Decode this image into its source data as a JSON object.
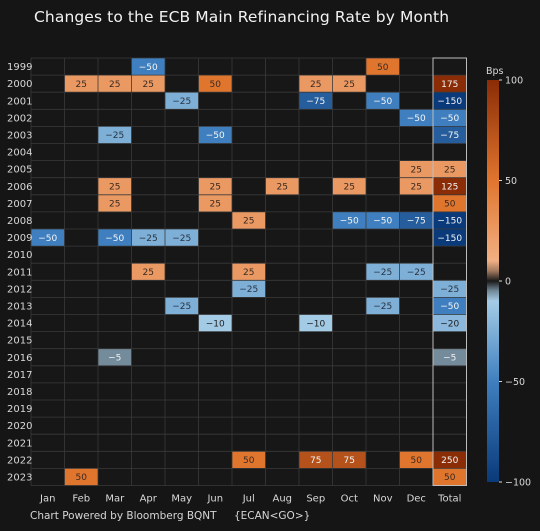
{
  "title": "Changes to the ECB Main Refinancing Rate by Month",
  "footer": {
    "credit": "Chart Powered by Bloomberg BQNT",
    "ticker": "{ECAN<GO>}"
  },
  "colors": {
    "background": "#151515",
    "grid": "#3a3a3a",
    "strong_negative": "#0a3a7a",
    "mid_negative": "#3f7fbf",
    "light_negative": "#a9cfe8",
    "zero": "#1a1a1a",
    "light_positive": "#f2b287",
    "mid_positive": "#e0752e",
    "strong_positive": "#8a2c06"
  },
  "chart_data": {
    "type": "heatmap",
    "title": "Changes to the ECB Main Refinancing Rate by Month",
    "columns": [
      "Jan",
      "Feb",
      "Mar",
      "Apr",
      "May",
      "Jun",
      "Jul",
      "Aug",
      "Sep",
      "Oct",
      "Nov",
      "Dec",
      "Total"
    ],
    "rows": [
      "1999",
      "2000",
      "2001",
      "2002",
      "2003",
      "2004",
      "2005",
      "2006",
      "2007",
      "2008",
      "2009",
      "2010",
      "2011",
      "2012",
      "2013",
      "2014",
      "2015",
      "2016",
      "2017",
      "2018",
      "2019",
      "2020",
      "2021",
      "2022",
      "2023"
    ],
    "values": [
      [
        null,
        null,
        null,
        -50,
        null,
        null,
        null,
        null,
        null,
        null,
        50,
        null,
        0
      ],
      [
        null,
        25,
        25,
        25,
        null,
        50,
        null,
        null,
        25,
        25,
        null,
        null,
        175
      ],
      [
        null,
        null,
        null,
        null,
        -25,
        null,
        null,
        null,
        -75,
        null,
        -50,
        null,
        -150
      ],
      [
        null,
        null,
        null,
        null,
        null,
        null,
        null,
        null,
        null,
        null,
        null,
        -50,
        -50
      ],
      [
        null,
        null,
        -25,
        null,
        null,
        -50,
        null,
        null,
        null,
        null,
        null,
        null,
        -75
      ],
      [
        null,
        null,
        null,
        null,
        null,
        null,
        null,
        null,
        null,
        null,
        null,
        null,
        0
      ],
      [
        null,
        null,
        null,
        null,
        null,
        null,
        null,
        null,
        null,
        null,
        null,
        25,
        25
      ],
      [
        null,
        null,
        25,
        null,
        null,
        25,
        null,
        25,
        null,
        25,
        null,
        25,
        125
      ],
      [
        null,
        null,
        25,
        null,
        null,
        25,
        null,
        null,
        null,
        null,
        null,
        null,
        50
      ],
      [
        null,
        null,
        null,
        null,
        null,
        null,
        25,
        null,
        null,
        -50,
        -50,
        -75,
        -150
      ],
      [
        -50,
        null,
        -50,
        -25,
        -25,
        null,
        null,
        null,
        null,
        null,
        null,
        null,
        -150
      ],
      [
        null,
        null,
        null,
        null,
        null,
        null,
        null,
        null,
        null,
        null,
        null,
        null,
        0
      ],
      [
        null,
        null,
        null,
        25,
        null,
        null,
        25,
        null,
        null,
        null,
        -25,
        -25,
        0
      ],
      [
        null,
        null,
        null,
        null,
        null,
        null,
        -25,
        null,
        null,
        null,
        null,
        null,
        -25
      ],
      [
        null,
        null,
        null,
        null,
        -25,
        null,
        null,
        null,
        null,
        null,
        -25,
        null,
        -50
      ],
      [
        null,
        null,
        null,
        null,
        null,
        -10,
        null,
        null,
        -10,
        null,
        null,
        null,
        -20
      ],
      [
        null,
        null,
        null,
        null,
        null,
        null,
        null,
        null,
        null,
        null,
        null,
        null,
        0
      ],
      [
        null,
        null,
        -5,
        null,
        null,
        null,
        null,
        null,
        null,
        null,
        null,
        null,
        -5
      ],
      [
        null,
        null,
        null,
        null,
        null,
        null,
        null,
        null,
        null,
        null,
        null,
        null,
        0
      ],
      [
        null,
        null,
        null,
        null,
        null,
        null,
        null,
        null,
        null,
        null,
        null,
        null,
        0
      ],
      [
        null,
        null,
        null,
        null,
        null,
        null,
        null,
        null,
        null,
        null,
        null,
        null,
        0
      ],
      [
        null,
        null,
        null,
        null,
        null,
        null,
        null,
        null,
        null,
        null,
        null,
        null,
        0
      ],
      [
        null,
        null,
        null,
        null,
        null,
        null,
        null,
        null,
        null,
        null,
        null,
        null,
        0
      ],
      [
        null,
        null,
        null,
        null,
        null,
        null,
        50,
        null,
        75,
        75,
        null,
        50,
        250
      ],
      [
        null,
        50,
        null,
        null,
        null,
        null,
        null,
        null,
        null,
        null,
        null,
        null,
        50
      ]
    ],
    "colorbar": {
      "label": "Bps",
      "range": [
        -100,
        100
      ],
      "ticks": [
        100,
        50,
        0,
        -50,
        -100
      ]
    },
    "grid": true
  }
}
